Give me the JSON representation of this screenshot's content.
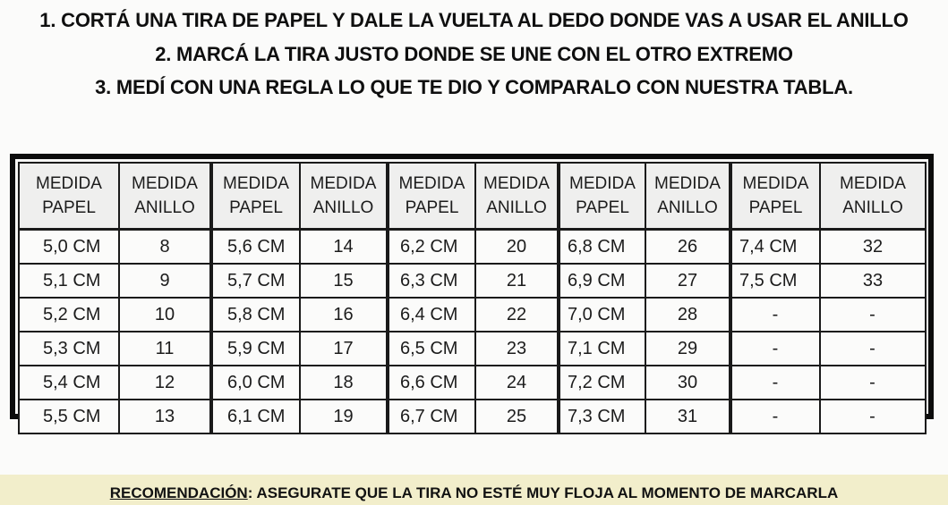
{
  "instructions": [
    "1. CORTÁ UNA TIRA DE PAPEL Y DALE LA VUELTA AL DEDO DONDE VAS A USAR EL ANILLO",
    "2. MARCÁ LA TIRA JUSTO DONDE SE UNE CON EL OTRO EXTREMO",
    "3. MEDÍ CON UNA REGLA LO QUE TE DIO Y COMPARALO CON NUESTRA TABLA."
  ],
  "table": {
    "columns": [
      {
        "top": "MEDIDA",
        "bottom": "PAPEL",
        "type": "paper"
      },
      {
        "top": "MEDIDA",
        "bottom": "ANILLO",
        "type": "ring"
      },
      {
        "top": "MEDIDA",
        "bottom": "PAPEL",
        "type": "paper"
      },
      {
        "top": "MEDIDA",
        "bottom": "ANILLO",
        "type": "ring"
      },
      {
        "top": "MEDIDA",
        "bottom": "PAPEL",
        "type": "paper"
      },
      {
        "top": "MEDIDA",
        "bottom": "ANILLO",
        "type": "ring"
      },
      {
        "top": "MEDIDA",
        "bottom": "PAPEL",
        "type": "paper"
      },
      {
        "top": "MEDIDA",
        "bottom": "ANILLO",
        "type": "ring"
      },
      {
        "top": "MEDIDA",
        "bottom": "PAPEL",
        "type": "paper"
      },
      {
        "top": "MEDIDA",
        "bottom": "ANILLO",
        "type": "ring"
      }
    ],
    "rows": [
      [
        "5,0 CM",
        "8",
        "5,6 CM",
        "14",
        "6,2 CM",
        "20",
        "6,8 CM",
        "26",
        "7,4 CM",
        "32"
      ],
      [
        "5,1 CM",
        "9",
        "5,7 CM",
        "15",
        "6,3 CM",
        "21",
        "6,9 CM",
        "27",
        "7,5 CM",
        "33"
      ],
      [
        "5,2 CM",
        "10",
        "5,8 CM",
        "16",
        "6,4 CM",
        "22",
        "7,0 CM",
        "28",
        "-",
        "-"
      ],
      [
        "5,3 CM",
        "11",
        "5,9 CM",
        "17",
        "6,5 CM",
        "23",
        "7,1 CM",
        "29",
        "-",
        "-"
      ],
      [
        "5,4 CM",
        "12",
        "6,0 CM",
        "18",
        "6,6 CM",
        "24",
        "7,2 CM",
        "30",
        "-",
        "-"
      ],
      [
        "5,5 CM",
        "13",
        "6,1 CM",
        "19",
        "6,7 CM",
        "25",
        "7,3 CM",
        "31",
        "-",
        "-"
      ]
    ]
  },
  "recommendation": {
    "label": "RECOMENDACIÓN",
    "text": ": ASEGURATE QUE LA TIRA NO ESTÉ MUY FLOJA AL MOMENTO DE MARCARLA"
  },
  "colors": {
    "page_background": "#fbfbfa",
    "table_border": "#0c0c0c",
    "cell_border": "#1a1a1a",
    "header_cell_background": "#efefee",
    "data_cell_background": "#fbfbfa",
    "banner_background": "#f2eecb",
    "text": "#131313"
  }
}
